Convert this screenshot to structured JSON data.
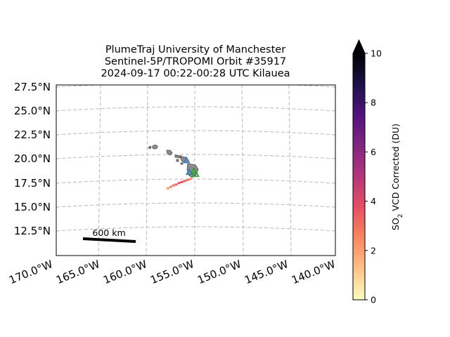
{
  "title": {
    "line1": "PlumeTraj    University of Manchester",
    "line2": "Sentinel-5P/TROPOMI Orbit #35917",
    "line3": "2024-09-17   00:22-00:28 UTC   Kilauea"
  },
  "map": {
    "lat_ticks": [
      "27.5°N",
      "25.0°N",
      "22.5°N",
      "20.0°N",
      "17.5°N",
      "15.0°N",
      "12.5°N"
    ],
    "lon_ticks": [
      "170.0°W",
      "165.0°W",
      "160.0°W",
      "155.0°W",
      "150.0°W",
      "145.0°W",
      "140.0°W"
    ],
    "extent": {
      "lon_min": -170,
      "lon_max": -140,
      "lat_min": 10.3,
      "lat_max": 27.7
    },
    "gridlines": true,
    "scale_bar": {
      "label": "600 km"
    },
    "plume": [
      {
        "lon": -158.0,
        "lat": 17.15,
        "value": 2.2
      },
      {
        "lon": -157.7,
        "lat": 17.3,
        "value": 2.6
      },
      {
        "lon": -157.4,
        "lat": 17.45,
        "value": 3.0
      },
      {
        "lon": -157.1,
        "lat": 17.55,
        "value": 3.3
      },
      {
        "lon": -156.8,
        "lat": 17.7,
        "value": 3.7
      },
      {
        "lon": -156.5,
        "lat": 17.8,
        "value": 4.0
      },
      {
        "lon": -156.2,
        "lat": 17.9,
        "value": 3.6
      },
      {
        "lon": -155.9,
        "lat": 18.0,
        "value": 3.1
      },
      {
        "lon": -155.6,
        "lat": 18.1,
        "value": 2.5
      }
    ],
    "markers": [
      {
        "type": "triangle",
        "color": "#3a7cc2",
        "lon": -156.0,
        "lat": 20.0
      },
      {
        "type": "triangle",
        "color": "#3a7cc2",
        "lon": -155.7,
        "lat": 18.8
      },
      {
        "type": "triangle",
        "color": "#2ca02c",
        "lon": -155.2,
        "lat": 18.9
      },
      {
        "type": "triangle",
        "color": "#2ca02c",
        "lon": -155.0,
        "lat": 18.6
      }
    ]
  },
  "colorbar": {
    "label_prefix": "SO",
    "label_sub": "2",
    "label_suffix": " VCD Corrected (DU)",
    "ticks": [
      "0",
      "2",
      "4",
      "6",
      "8",
      "10"
    ],
    "min": 0,
    "max": 10,
    "extend": "max",
    "colormap": "magma_r",
    "stops": [
      "#fcfdbf",
      "#fec287",
      "#fb8761",
      "#e55064",
      "#b5367a",
      "#822681",
      "#51127c",
      "#1d1147",
      "#000004"
    ]
  }
}
